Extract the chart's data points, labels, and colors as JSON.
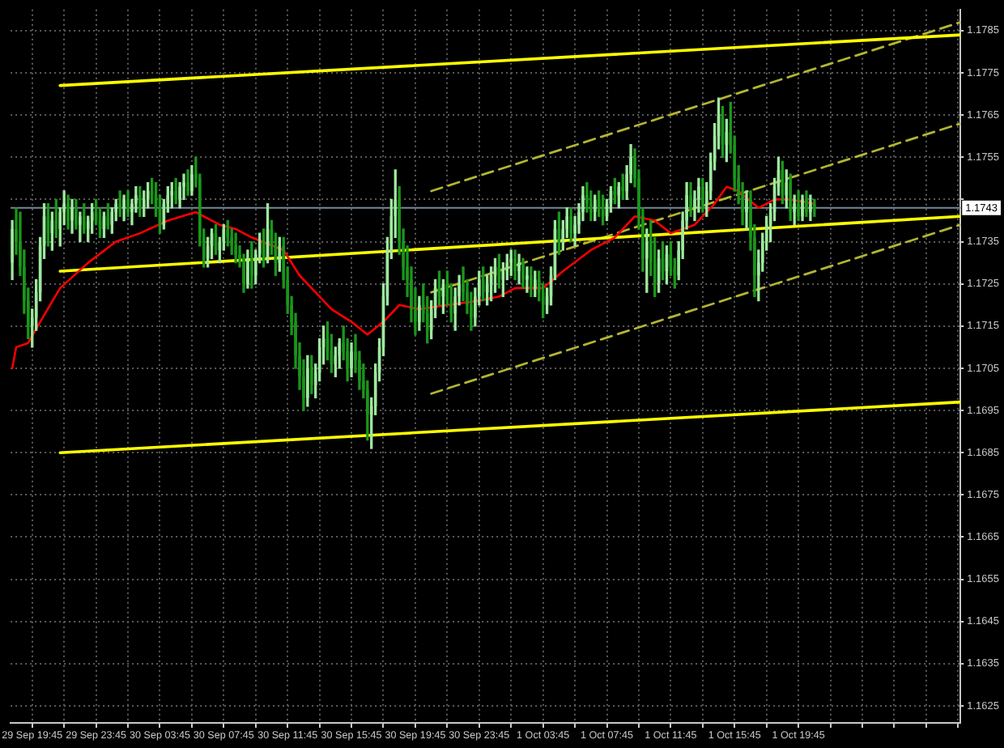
{
  "chart_data": {
    "type": "candlestick",
    "x": [
      "--09-29T18:30",
      "--09-29T18:45",
      "--09-29T19:00",
      "--09-29T19:15",
      "--09-29T19:30",
      "--09-29T19:45",
      "--09-29T20:00",
      "--09-29T20:15",
      "--09-29T20:30",
      "--09-29T20:45",
      "--09-29T21:00",
      "--09-29T21:15",
      "--09-29T21:30",
      "--09-29T21:45",
      "--09-29T22:00",
      "--09-29T22:15",
      "--09-29T22:30",
      "--09-29T22:45",
      "--09-29T23:00",
      "--09-29T23:15",
      "--09-29T23:30",
      "--09-29T23:45",
      "--09-30T00:00",
      "--09-30T00:15",
      "--09-30T00:30",
      "--09-30T00:45",
      "--09-30T01:00",
      "--09-30T01:15",
      "--09-30T01:30",
      "--09-30T01:45",
      "--09-30T02:00",
      "--09-30T02:15",
      "--09-30T02:30",
      "--09-30T02:45",
      "--09-30T03:00",
      "--09-30T03:15",
      "--09-30T03:30",
      "--09-30T03:45",
      "--09-30T04:00",
      "--09-30T04:15",
      "--09-30T04:30",
      "--09-30T04:45",
      "--09-30T05:00",
      "--09-30T05:15",
      "--09-30T05:30",
      "--09-30T05:45",
      "--09-30T06:00",
      "--09-30T06:15",
      "--09-30T06:30",
      "--09-30T06:45",
      "--09-30T07:00",
      "--09-30T07:15",
      "--09-30T07:30",
      "--09-30T07:45",
      "--09-30T08:00",
      "--09-30T08:15",
      "--09-30T08:30",
      "--09-30T08:45",
      "--09-30T09:00",
      "--09-30T09:15",
      "--09-30T09:30",
      "--09-30T09:45",
      "--09-30T10:00",
      "--09-30T10:15",
      "--09-30T10:30",
      "--09-30T10:45",
      "--09-30T11:00",
      "--09-30T11:15",
      "--09-30T11:30",
      "--09-30T11:45",
      "--09-30T12:00",
      "--09-30T12:15",
      "--09-30T12:30",
      "--09-30T12:45",
      "--09-30T13:00",
      "--09-30T13:15",
      "--09-30T13:30",
      "--09-30T13:45",
      "--09-30T14:00",
      "--09-30T14:15",
      "--09-30T14:30",
      "--09-30T14:45",
      "--09-30T15:00",
      "--09-30T15:15",
      "--09-30T15:30",
      "--09-30T15:45",
      "--09-30T16:00",
      "--09-30T16:15",
      "--09-30T16:30",
      "--09-30T16:45",
      "--09-30T17:00",
      "--09-30T17:15",
      "--09-30T17:30",
      "--09-30T17:45",
      "--09-30T18:00",
      "--09-30T18:15",
      "--09-30T18:30",
      "--09-30T18:45",
      "--09-30T19:00",
      "--09-30T19:15",
      "--09-30T19:30",
      "--09-30T19:45",
      "--09-30T20:00",
      "--09-30T20:15",
      "--09-30T20:30",
      "--09-30T20:45",
      "--09-30T21:00",
      "--09-30T21:15",
      "--09-30T21:30",
      "--09-30T21:45",
      "--09-30T22:00",
      "--09-30T22:15",
      "--09-30T22:30",
      "--09-30T22:45",
      "--09-30T23:00",
      "--09-30T23:15",
      "--09-30T23:30",
      "--09-30T23:45",
      "--10-01T00:00",
      "--10-01T00:15",
      "--10-01T00:30",
      "--10-01T00:45",
      "--10-01T01:00",
      "--10-01T01:15",
      "--10-01T01:30",
      "--10-01T01:45",
      "--10-01T02:00",
      "--10-01T02:15",
      "--10-01T02:30",
      "--10-01T02:45",
      "--10-01T03:00",
      "--10-01T03:15",
      "--10-01T03:30",
      "--10-01T03:45",
      "--10-01T04:00",
      "--10-01T04:15",
      "--10-01T04:30",
      "--10-01T04:45",
      "--10-01T05:00",
      "--10-01T05:15",
      "--10-01T05:30",
      "--10-01T05:45",
      "--10-01T06:00",
      "--10-01T06:15",
      "--10-01T06:30",
      "--10-01T06:45",
      "--10-01T07:00",
      "--10-01T07:15",
      "--10-01T07:30",
      "--10-01T07:45",
      "--10-01T08:00",
      "--10-01T08:15",
      "--10-01T08:30",
      "--10-01T08:45",
      "--10-01T09:00",
      "--10-01T09:15",
      "--10-01T09:30",
      "--10-01T09:45",
      "--10-01T10:00",
      "--10-01T10:15",
      "--10-01T10:30",
      "--10-01T10:45",
      "--10-01T11:00",
      "--10-01T11:15",
      "--10-01T11:30",
      "--10-01T11:45",
      "--10-01T12:00",
      "--10-01T12:15",
      "--10-01T12:30",
      "--10-01T12:45",
      "--10-01T13:00",
      "--10-01T13:15",
      "--10-01T13:30",
      "--10-01T13:45",
      "--10-01T14:00",
      "--10-01T14:15",
      "--10-01T14:30",
      "--10-01T14:45",
      "--10-01T15:00",
      "--10-01T15:15",
      "--10-01T15:30",
      "--10-01T15:45",
      "--10-01T16:00",
      "--10-01T16:15",
      "--10-01T16:30",
      "--10-01T16:45",
      "--10-01T17:00",
      "--10-01T17:15",
      "--10-01T17:30",
      "--10-01T17:45",
      "--10-01T18:00",
      "--10-01T18:15",
      "--10-01T18:30",
      "--10-01T18:45",
      "--10-01T19:00",
      "--10-01T19:15",
      "--10-01T19:30",
      "--10-01T19:45",
      "--10-01T20:00",
      "--10-01T20:15",
      "--10-01T20:30",
      "--10-01T20:45"
    ],
    "ohlc": [
      [
        1.173,
        1.174,
        1.1726,
        1.1738
      ],
      [
        1.1738,
        1.1743,
        1.1732,
        1.1735
      ],
      [
        1.1735,
        1.1742,
        1.1727,
        1.1729
      ],
      [
        1.1729,
        1.1733,
        1.1718,
        1.1721
      ],
      [
        1.1721,
        1.1724,
        1.1712,
        1.1715
      ],
      [
        1.1715,
        1.1719,
        1.171,
        1.1717
      ],
      [
        1.1717,
        1.1726,
        1.1714,
        1.1723
      ],
      [
        1.1723,
        1.1736,
        1.1721,
        1.1734
      ],
      [
        1.1734,
        1.1744,
        1.1731,
        1.1741
      ],
      [
        1.1741,
        1.1744,
        1.1734,
        1.1737
      ],
      [
        1.1737,
        1.1742,
        1.1733,
        1.174
      ],
      [
        1.174,
        1.1745,
        1.1736,
        1.1738
      ],
      [
        1.1738,
        1.1743,
        1.1734,
        1.1742
      ],
      [
        1.1742,
        1.1747,
        1.1739,
        1.1744
      ],
      [
        1.1744,
        1.1746,
        1.1738,
        1.174
      ],
      [
        1.174,
        1.1745,
        1.1737,
        1.1743
      ],
      [
        1.1743,
        1.1745,
        1.1738,
        1.1739
      ],
      [
        1.1739,
        1.1742,
        1.1735,
        1.1741
      ],
      [
        1.1741,
        1.1744,
        1.1737,
        1.1738
      ],
      [
        1.1738,
        1.1741,
        1.1735,
        1.174
      ],
      [
        1.174,
        1.1744,
        1.1737,
        1.1742
      ],
      [
        1.1742,
        1.1745,
        1.1739,
        1.174
      ],
      [
        1.174,
        1.1743,
        1.1736,
        1.1738
      ],
      [
        1.1738,
        1.1742,
        1.1736,
        1.1741
      ],
      [
        1.1741,
        1.1744,
        1.1738,
        1.1739
      ],
      [
        1.1739,
        1.1743,
        1.1737,
        1.1742
      ],
      [
        1.1742,
        1.1745,
        1.174,
        1.1744
      ],
      [
        1.1744,
        1.1747,
        1.1741,
        1.1743
      ],
      [
        1.1743,
        1.1746,
        1.174,
        1.1745
      ],
      [
        1.1745,
        1.1747,
        1.1741,
        1.1742
      ],
      [
        1.1742,
        1.1745,
        1.1739,
        1.1744
      ],
      [
        1.1744,
        1.1748,
        1.1742,
        1.1746
      ],
      [
        1.1746,
        1.1748,
        1.1741,
        1.1743
      ],
      [
        1.1743,
        1.1747,
        1.1741,
        1.1745
      ],
      [
        1.1745,
        1.1749,
        1.1743,
        1.1747
      ],
      [
        1.1747,
        1.175,
        1.1744,
        1.1746
      ],
      [
        1.1746,
        1.1749,
        1.1741,
        1.1743
      ],
      [
        1.1743,
        1.1746,
        1.1737,
        1.1739
      ],
      [
        1.1739,
        1.1745,
        1.1738,
        1.1744
      ],
      [
        1.1744,
        1.1748,
        1.1742,
        1.1746
      ],
      [
        1.1746,
        1.1749,
        1.1743,
        1.1747
      ],
      [
        1.1747,
        1.175,
        1.1744,
        1.1745
      ],
      [
        1.1745,
        1.1749,
        1.1743,
        1.1748
      ],
      [
        1.1748,
        1.1751,
        1.1745,
        1.1749
      ],
      [
        1.1749,
        1.1752,
        1.1746,
        1.1747
      ],
      [
        1.1747,
        1.1753,
        1.1746,
        1.1751
      ],
      [
        1.1751,
        1.1755,
        1.1748,
        1.175
      ],
      [
        1.175,
        1.1751,
        1.1734,
        1.1736
      ],
      [
        1.1736,
        1.1738,
        1.1729,
        1.1731
      ],
      [
        1.1731,
        1.1736,
        1.1729,
        1.1734
      ],
      [
        1.1734,
        1.1738,
        1.1731,
        1.1737
      ],
      [
        1.1737,
        1.1739,
        1.1732,
        1.1733
      ],
      [
        1.1733,
        1.1736,
        1.173,
        1.1735
      ],
      [
        1.1735,
        1.1739,
        1.1733,
        1.1738
      ],
      [
        1.1738,
        1.174,
        1.1734,
        1.1736
      ],
      [
        1.1736,
        1.1738,
        1.1732,
        1.1734
      ],
      [
        1.1734,
        1.1737,
        1.173,
        1.1732
      ],
      [
        1.1732,
        1.1734,
        1.1729,
        1.1731
      ],
      [
        1.1731,
        1.1732,
        1.1723,
        1.1725
      ],
      [
        1.1725,
        1.1733,
        1.1724,
        1.1731
      ],
      [
        1.1731,
        1.1735,
        1.1724,
        1.1727
      ],
      [
        1.1727,
        1.1733,
        1.1725,
        1.1732
      ],
      [
        1.1732,
        1.1737,
        1.173,
        1.1735
      ],
      [
        1.1735,
        1.1738,
        1.1729,
        1.1731
      ],
      [
        1.1731,
        1.1744,
        1.173,
        1.1738
      ],
      [
        1.1738,
        1.174,
        1.1732,
        1.1734
      ],
      [
        1.1734,
        1.1737,
        1.1727,
        1.173
      ],
      [
        1.173,
        1.1736,
        1.1728,
        1.1734
      ],
      [
        1.1734,
        1.1736,
        1.1724,
        1.1726
      ],
      [
        1.1726,
        1.1729,
        1.1718,
        1.172
      ],
      [
        1.172,
        1.1722,
        1.1713,
        1.1716
      ],
      [
        1.1716,
        1.1718,
        1.1705,
        1.1708
      ],
      [
        1.1708,
        1.1711,
        1.17,
        1.1703
      ],
      [
        1.1703,
        1.1707,
        1.1695,
        1.1698
      ],
      [
        1.1698,
        1.1708,
        1.1696,
        1.1705
      ],
      [
        1.1705,
        1.1708,
        1.1699,
        1.1701
      ],
      [
        1.1701,
        1.1706,
        1.1698,
        1.1704
      ],
      [
        1.1704,
        1.1712,
        1.1702,
        1.171
      ],
      [
        1.171,
        1.1715,
        1.1706,
        1.1712
      ],
      [
        1.1712,
        1.1716,
        1.1707,
        1.1709
      ],
      [
        1.1709,
        1.1713,
        1.1704,
        1.1706
      ],
      [
        1.1706,
        1.171,
        1.1703,
        1.1708
      ],
      [
        1.1708,
        1.1712,
        1.1705,
        1.1711
      ],
      [
        1.1711,
        1.1715,
        1.1707,
        1.1709
      ],
      [
        1.1709,
        1.1712,
        1.1702,
        1.1705
      ],
      [
        1.1705,
        1.1711,
        1.1703,
        1.1709
      ],
      [
        1.1709,
        1.1713,
        1.1704,
        1.1707
      ],
      [
        1.1707,
        1.1709,
        1.17,
        1.1702
      ],
      [
        1.1702,
        1.1706,
        1.1698,
        1.17
      ],
      [
        1.17,
        1.1702,
        1.1688,
        1.1694
      ],
      [
        1.1694,
        1.1698,
        1.1686,
        1.1696
      ],
      [
        1.1696,
        1.1706,
        1.1694,
        1.1704
      ],
      [
        1.1704,
        1.1712,
        1.1702,
        1.171
      ],
      [
        1.171,
        1.1725,
        1.1708,
        1.1722
      ],
      [
        1.1722,
        1.1736,
        1.172,
        1.1733
      ],
      [
        1.1733,
        1.1745,
        1.1731,
        1.1741
      ],
      [
        1.1741,
        1.1752,
        1.1736,
        1.1745
      ],
      [
        1.1745,
        1.1748,
        1.1732,
        1.1735
      ],
      [
        1.1735,
        1.1738,
        1.1726,
        1.1729
      ],
      [
        1.1729,
        1.1734,
        1.1722,
        1.1726
      ],
      [
        1.1726,
        1.1729,
        1.1716,
        1.1719
      ],
      [
        1.1719,
        1.1724,
        1.1713,
        1.1716
      ],
      [
        1.1716,
        1.1722,
        1.1714,
        1.172
      ],
      [
        1.172,
        1.1725,
        1.1716,
        1.1718
      ],
      [
        1.1718,
        1.1722,
        1.1711,
        1.1714
      ],
      [
        1.1714,
        1.1721,
        1.1712,
        1.1719
      ],
      [
        1.1719,
        1.1726,
        1.1717,
        1.1724
      ],
      [
        1.1724,
        1.1728,
        1.172,
        1.1722
      ],
      [
        1.1722,
        1.1726,
        1.1718,
        1.1725
      ],
      [
        1.1725,
        1.1728,
        1.172,
        1.1721
      ],
      [
        1.1721,
        1.1725,
        1.1716,
        1.1718
      ],
      [
        1.1718,
        1.1724,
        1.1714,
        1.1722
      ],
      [
        1.1722,
        1.1727,
        1.172,
        1.1725
      ],
      [
        1.1725,
        1.1729,
        1.1721,
        1.1723
      ],
      [
        1.1723,
        1.1726,
        1.1718,
        1.172
      ],
      [
        1.172,
        1.1723,
        1.1714,
        1.1717
      ],
      [
        1.1717,
        1.1724,
        1.1715,
        1.1722
      ],
      [
        1.1722,
        1.1728,
        1.172,
        1.1726
      ],
      [
        1.1726,
        1.1729,
        1.1721,
        1.1723
      ],
      [
        1.1723,
        1.1727,
        1.172,
        1.1725
      ],
      [
        1.1725,
        1.1729,
        1.1721,
        1.1727
      ],
      [
        1.1727,
        1.1731,
        1.1723,
        1.1729
      ],
      [
        1.1729,
        1.1732,
        1.1724,
        1.1726
      ],
      [
        1.1726,
        1.173,
        1.1722,
        1.1728
      ],
      [
        1.1728,
        1.1732,
        1.1726,
        1.173
      ],
      [
        1.173,
        1.1733,
        1.1727,
        1.1731
      ],
      [
        1.1731,
        1.1733,
        1.1726,
        1.1728
      ],
      [
        1.1728,
        1.1732,
        1.1725,
        1.173
      ],
      [
        1.173,
        1.1731,
        1.1724,
        1.1726
      ],
      [
        1.1726,
        1.1729,
        1.1723,
        1.1727
      ],
      [
        1.1727,
        1.1729,
        1.1722,
        1.1724
      ],
      [
        1.1724,
        1.1728,
        1.1722,
        1.1726
      ],
      [
        1.1726,
        1.1728,
        1.1721,
        1.1723
      ],
      [
        1.1723,
        1.1725,
        1.1717,
        1.172
      ],
      [
        1.172,
        1.1724,
        1.1718,
        1.1722
      ],
      [
        1.1722,
        1.1729,
        1.172,
        1.1727
      ],
      [
        1.1727,
        1.174,
        1.1726,
        1.1738
      ],
      [
        1.1738,
        1.1742,
        1.1732,
        1.1735
      ],
      [
        1.1735,
        1.174,
        1.1733,
        1.1738
      ],
      [
        1.1738,
        1.1743,
        1.1736,
        1.1741
      ],
      [
        1.1741,
        1.1743,
        1.1735,
        1.1737
      ],
      [
        1.1737,
        1.1741,
        1.1734,
        1.1739
      ],
      [
        1.1739,
        1.1744,
        1.1737,
        1.1742
      ],
      [
        1.1742,
        1.1748,
        1.174,
        1.1746
      ],
      [
        1.1746,
        1.1749,
        1.1742,
        1.1744
      ],
      [
        1.1744,
        1.1747,
        1.174,
        1.1742
      ],
      [
        1.1742,
        1.1746,
        1.174,
        1.1745
      ],
      [
        1.1745,
        1.1747,
        1.1741,
        1.1743
      ],
      [
        1.1743,
        1.1746,
        1.1739,
        1.1741
      ],
      [
        1.1741,
        1.1745,
        1.174,
        1.1744
      ],
      [
        1.1744,
        1.1748,
        1.1742,
        1.1747
      ],
      [
        1.1747,
        1.175,
        1.1744,
        1.1746
      ],
      [
        1.1746,
        1.1749,
        1.1743,
        1.1748
      ],
      [
        1.1748,
        1.1751,
        1.1745,
        1.1747
      ],
      [
        1.1747,
        1.1753,
        1.1745,
        1.1751
      ],
      [
        1.1751,
        1.1758,
        1.1749,
        1.1755
      ],
      [
        1.1755,
        1.1757,
        1.1748,
        1.175
      ],
      [
        1.175,
        1.1752,
        1.1738,
        1.1741
      ],
      [
        1.1741,
        1.1743,
        1.1728,
        1.1731
      ],
      [
        1.1731,
        1.1738,
        1.1723,
        1.1735
      ],
      [
        1.1735,
        1.174,
        1.1727,
        1.173
      ],
      [
        1.173,
        1.1736,
        1.1722,
        1.1725
      ],
      [
        1.1725,
        1.1733,
        1.1723,
        1.1731
      ],
      [
        1.1731,
        1.1735,
        1.1726,
        1.1728
      ],
      [
        1.1728,
        1.1734,
        1.1725,
        1.1732
      ],
      [
        1.1732,
        1.1735,
        1.1727,
        1.1729
      ],
      [
        1.1729,
        1.1731,
        1.1724,
        1.1727
      ],
      [
        1.1727,
        1.1735,
        1.1726,
        1.1733
      ],
      [
        1.1733,
        1.1742,
        1.1731,
        1.174
      ],
      [
        1.174,
        1.1749,
        1.1738,
        1.1746
      ],
      [
        1.1746,
        1.1749,
        1.1741,
        1.1743
      ],
      [
        1.1743,
        1.1747,
        1.174,
        1.1745
      ],
      [
        1.1745,
        1.175,
        1.1742,
        1.1748
      ],
      [
        1.1748,
        1.175,
        1.1742,
        1.1744
      ],
      [
        1.1744,
        1.1749,
        1.1741,
        1.1747
      ],
      [
        1.1747,
        1.1756,
        1.1745,
        1.1754
      ],
      [
        1.1754,
        1.1763,
        1.1752,
        1.176
      ],
      [
        1.176,
        1.1769,
        1.1757,
        1.1765
      ],
      [
        1.1765,
        1.1767,
        1.1755,
        1.1758
      ],
      [
        1.1758,
        1.1764,
        1.1754,
        1.1761
      ],
      [
        1.1761,
        1.1768,
        1.1756,
        1.1758
      ],
      [
        1.1758,
        1.176,
        1.1747,
        1.175
      ],
      [
        1.175,
        1.1753,
        1.1744,
        1.1746
      ],
      [
        1.1746,
        1.1749,
        1.1739,
        1.1742
      ],
      [
        1.1742,
        1.1747,
        1.1738,
        1.1745
      ],
      [
        1.1745,
        1.1747,
        1.1733,
        1.1736
      ],
      [
        1.1736,
        1.1739,
        1.1722,
        1.1727
      ],
      [
        1.1727,
        1.1733,
        1.1721,
        1.173
      ],
      [
        1.173,
        1.1737,
        1.1728,
        1.1735
      ],
      [
        1.1735,
        1.1741,
        1.1733,
        1.1739
      ],
      [
        1.1739,
        1.1744,
        1.1735,
        1.1742
      ],
      [
        1.1742,
        1.175,
        1.174,
        1.1748
      ],
      [
        1.1748,
        1.1755,
        1.1746,
        1.1752
      ],
      [
        1.1752,
        1.1754,
        1.1744,
        1.1746
      ],
      [
        1.1746,
        1.1752,
        1.1743,
        1.1749
      ],
      [
        1.1749,
        1.1751,
        1.174,
        1.1742
      ],
      [
        1.1742,
        1.1746,
        1.1739,
        1.1744
      ],
      [
        1.1744,
        1.1747,
        1.174,
        1.1741
      ],
      [
        1.1741,
        1.1746,
        1.174,
        1.1745
      ],
      [
        1.1745,
        1.1747,
        1.1741,
        1.1742
      ],
      [
        1.1742,
        1.1746,
        1.174,
        1.1744
      ],
      [
        1.1744,
        1.1745,
        1.1741,
        1.1743
      ]
    ],
    "colors": [
      "#9ee89e",
      "#1a961a",
      "#1a961a",
      "#1a961a",
      "#1a961a",
      "#9ee89e",
      "#9ee89e",
      "#9ee89e",
      "#9ee89e",
      "#1a961a",
      "#9ee89e",
      "#1a961a",
      "#9ee89e",
      "#9ee89e",
      "#1a961a",
      "#9ee89e",
      "#1a961a",
      "#9ee89e",
      "#1a961a",
      "#9ee89e",
      "#9ee89e",
      "#1a961a",
      "#1a961a",
      "#9ee89e",
      "#1a961a",
      "#9ee89e",
      "#9ee89e",
      "#1a961a",
      "#9ee89e",
      "#1a961a",
      "#9ee89e",
      "#9ee89e",
      "#1a961a",
      "#9ee89e",
      "#9ee89e",
      "#1a961a",
      "#1a961a",
      "#1a961a",
      "#9ee89e",
      "#9ee89e",
      "#9ee89e",
      "#1a961a",
      "#9ee89e",
      "#9ee89e",
      "#1a961a",
      "#9ee89e",
      "#1a961a",
      "#1a961a",
      "#1a961a",
      "#9ee89e",
      "#9ee89e",
      "#1a961a",
      "#9ee89e",
      "#9ee89e",
      "#1a961a",
      "#1a961a",
      "#1a961a",
      "#1a961a",
      "#1a961a",
      "#9ee89e",
      "#1a961a",
      "#9ee89e",
      "#9ee89e",
      "#1a961a",
      "#9ee89e",
      "#1a961a",
      "#1a961a",
      "#9ee89e",
      "#1a961a",
      "#1a961a",
      "#1a961a",
      "#1a961a",
      "#1a961a",
      "#1a961a",
      "#9ee89e",
      "#1a961a",
      "#9ee89e",
      "#9ee89e",
      "#9ee89e",
      "#1a961a",
      "#1a961a",
      "#9ee89e",
      "#9ee89e",
      "#1a961a",
      "#1a961a",
      "#9ee89e",
      "#1a961a",
      "#1a961a",
      "#1a961a",
      "#1a961a",
      "#9ee89e",
      "#9ee89e",
      "#9ee89e",
      "#9ee89e",
      "#9ee89e",
      "#9ee89e",
      "#9ee89e",
      "#1a961a",
      "#1a961a",
      "#1a961a",
      "#1a961a",
      "#1a961a",
      "#9ee89e",
      "#1a961a",
      "#1a961a",
      "#9ee89e",
      "#9ee89e",
      "#1a961a",
      "#9ee89e",
      "#1a961a",
      "#1a961a",
      "#9ee89e",
      "#9ee89e",
      "#1a961a",
      "#1a961a",
      "#1a961a",
      "#9ee89e",
      "#9ee89e",
      "#1a961a",
      "#9ee89e",
      "#9ee89e",
      "#9ee89e",
      "#1a961a",
      "#9ee89e",
      "#9ee89e",
      "#9ee89e",
      "#1a961a",
      "#9ee89e",
      "#1a961a",
      "#9ee89e",
      "#1a961a",
      "#9ee89e",
      "#1a961a",
      "#1a961a",
      "#9ee89e",
      "#9ee89e",
      "#9ee89e",
      "#1a961a",
      "#9ee89e",
      "#9ee89e",
      "#1a961a",
      "#9ee89e",
      "#9ee89e",
      "#9ee89e",
      "#1a961a",
      "#1a961a",
      "#9ee89e",
      "#1a961a",
      "#1a961a",
      "#9ee89e",
      "#9ee89e",
      "#1a961a",
      "#9ee89e",
      "#1a961a",
      "#9ee89e",
      "#9ee89e",
      "#1a961a",
      "#1a961a",
      "#1a961a",
      "#9ee89e",
      "#1a961a",
      "#1a961a",
      "#9ee89e",
      "#1a961a",
      "#9ee89e",
      "#1a961a",
      "#1a961a",
      "#9ee89e",
      "#9ee89e",
      "#9ee89e",
      "#1a961a",
      "#9ee89e",
      "#9ee89e",
      "#1a961a",
      "#9ee89e",
      "#9ee89e",
      "#9ee89e",
      "#9ee89e",
      "#1a961a",
      "#9ee89e",
      "#1a961a",
      "#1a961a",
      "#1a961a",
      "#1a961a",
      "#9ee89e",
      "#1a961a",
      "#1a961a",
      "#9ee89e",
      "#9ee89e",
      "#9ee89e",
      "#9ee89e",
      "#9ee89e",
      "#9ee89e",
      "#1a961a",
      "#9ee89e",
      "#1a961a",
      "#9ee89e",
      "#1a961a",
      "#9ee89e",
      "#1a961a",
      "#9ee89e",
      "#1a961a"
    ],
    "series": [
      {
        "type": "line",
        "color": "#ff0000",
        "x": [
          "--09-29T18:30",
          "--09-29T18:45",
          "--09-29T19:30",
          "--09-29T20:15",
          "--09-29T21:30",
          "--09-29T23:15",
          "--09-30T01:00",
          "--09-30T02:30",
          "--09-30T04:15",
          "--09-30T06:00",
          "--09-30T07:30",
          "--09-30T08:30",
          "--09-30T09:30",
          "--09-30T11:30",
          "--09-30T12:30",
          "--09-30T13:30",
          "--09-30T14:30",
          "--09-30T15:45",
          "--09-30T16:45",
          "--09-30T17:45",
          "--09-30T18:45",
          "--09-30T20:00",
          "--09-30T21:45",
          "--09-30T23:45",
          "--10-01T01:00",
          "--10-01T02:00",
          "--10-01T03:45",
          "--10-01T05:00",
          "--10-01T06:45",
          "--10-01T08:15",
          "--10-01T09:30",
          "--10-01T10:45",
          "--10-01T11:45",
          "--10-01T13:15",
          "--10-01T14:30",
          "--10-01T15:15",
          "--10-01T16:00",
          "--10-01T17:15",
          "--10-01T18:15",
          "--10-01T19:15",
          "--10-01T20:45"
        ],
        "values": [
          1.1705,
          1.171,
          1.1711,
          1.1716,
          1.1724,
          1.173,
          1.1735,
          1.1737,
          1.174,
          1.1742,
          1.1739,
          1.1738,
          1.1736,
          1.1733,
          1.1727,
          1.1723,
          1.1719,
          1.1716,
          1.1713,
          1.1716,
          1.172,
          1.1719,
          1.172,
          1.1721,
          1.1722,
          1.1724,
          1.1724,
          1.1728,
          1.1733,
          1.1736,
          1.1741,
          1.174,
          1.1737,
          1.1739,
          1.1744,
          1.1748,
          1.1747,
          1.1743,
          1.1745,
          1.1745,
          1.1744
        ]
      },
      {
        "type": "line",
        "color": "#ffff00",
        "x": [
          "--09-29T21:30",
          "--10-02T05:54"
        ],
        "values": [
          1.1772,
          1.1784
        ]
      },
      {
        "type": "line",
        "color": "#ffff00",
        "x": [
          "--09-29T21:30",
          "--10-02T05:54"
        ],
        "values": [
          1.1728,
          1.1741
        ]
      },
      {
        "type": "line",
        "color": "#ffff00",
        "x": [
          "--09-29T21:30",
          "--10-02T05:54"
        ],
        "values": [
          1.1685,
          1.1697
        ]
      },
      {
        "type": "line",
        "color": "#b4b432",
        "line_style": "dashed",
        "x": [
          "--09-30T20:45",
          "--10-02T05:54"
        ],
        "values": [
          1.1747,
          1.1787
        ]
      },
      {
        "type": "line",
        "color": "#b4b432",
        "line_style": "dashed",
        "x": [
          "--09-30T20:45",
          "--10-02T05:54"
        ],
        "values": [
          1.1723,
          1.1763
        ]
      },
      {
        "type": "line",
        "color": "#b4b432",
        "line_style": "dashed",
        "x": [
          "--09-30T20:45",
          "--10-02T05:54"
        ],
        "values": [
          1.1699,
          1.1739
        ]
      }
    ],
    "xlim": [
      "--09-29T18:24",
      "--10-02T05:54"
    ],
    "xticks": [
      {
        "value": "--09-29T19:45",
        "label": "29 Sep 19:45"
      },
      {
        "value": "--09-29T21:45",
        "label": null
      },
      {
        "value": "--09-29T23:45",
        "label": "29 Sep 23:45"
      },
      {
        "value": "--09-30T01:45",
        "label": null
      },
      {
        "value": "--09-30T03:45",
        "label": "30 Sep 03:45"
      },
      {
        "value": "--09-30T05:45",
        "label": null
      },
      {
        "value": "--09-30T07:45",
        "label": "30 Sep 07:45"
      },
      {
        "value": "--09-30T09:45",
        "label": null
      },
      {
        "value": "--09-30T11:45",
        "label": "30 Sep 11:45"
      },
      {
        "value": "--09-30T13:45",
        "label": null
      },
      {
        "value": "--09-30T15:45",
        "label": "30 Sep 15:45"
      },
      {
        "value": "--09-30T17:45",
        "label": null
      },
      {
        "value": "--09-30T19:45",
        "label": "30 Sep 19:45"
      },
      {
        "value": "--09-30T21:45",
        "label": null
      },
      {
        "value": "--09-30T23:45",
        "label": "30 Sep 23:45"
      },
      {
        "value": "--10-01T01:45",
        "label": null
      },
      {
        "value": "--10-01T03:45",
        "label": "1 Oct 03:45"
      },
      {
        "value": "--10-01T05:45",
        "label": null
      },
      {
        "value": "--10-01T07:45",
        "label": "1 Oct 07:45"
      },
      {
        "value": "--10-01T09:45",
        "label": null
      },
      {
        "value": "--10-01T11:45",
        "label": "1 Oct 11:45"
      },
      {
        "value": "--10-01T13:45",
        "label": null
      },
      {
        "value": "--10-01T15:45",
        "label": "1 Oct 15:45"
      },
      {
        "value": "--10-01T17:45",
        "label": null
      },
      {
        "value": "--10-01T19:45",
        "label": "1 Oct 19:45"
      },
      {
        "value": "--10-01T21:45",
        "label": null
      },
      {
        "value": "--10-01T23:45",
        "label": null
      },
      {
        "value": "--10-02T01:45",
        "label": null
      },
      {
        "value": "--10-02T03:45",
        "label": null
      },
      {
        "value": "--10-02T05:45",
        "label": null
      }
    ],
    "ylim": [
      1.1621,
      1.179
    ],
    "yticks": [
      1.1625,
      1.1635,
      1.1645,
      1.1655,
      1.1665,
      1.1675,
      1.1685,
      1.1695,
      1.1705,
      1.1715,
      1.1725,
      1.1735,
      {
        "value": 1.1745,
        "label": null
      },
      1.1755,
      1.1765,
      1.1775,
      1.1785
    ],
    "ref_lines": [
      {
        "axis": "y",
        "value": 1.1743,
        "label": "1.1743",
        "color": "#778899"
      }
    ],
    "grid": true
  }
}
